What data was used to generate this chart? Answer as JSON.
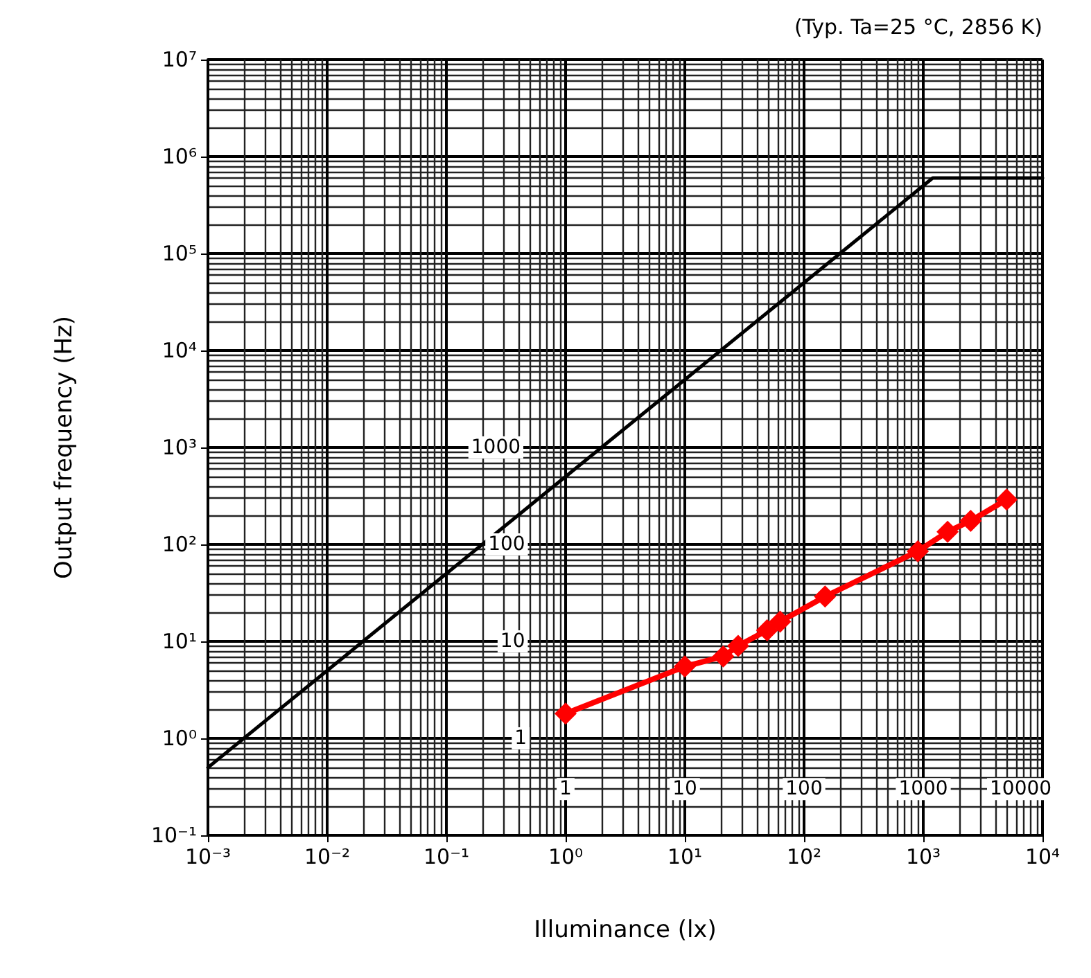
{
  "chart_data": {
    "type": "line",
    "xlabel": "Illuminance (lx)",
    "ylabel": "Output frequency (Hz)",
    "annotations": [
      "(Typ. Ta=25 °C, 2856 K)",
      {
        "text": "1000",
        "x": 0.26,
        "y": 1000
      },
      {
        "text": "100",
        "x": 0.32,
        "y": 100
      },
      {
        "text": "10",
        "x": 0.36,
        "y": 10
      },
      {
        "text": "1",
        "x": 0.42,
        "y": 1
      },
      {
        "text": "1",
        "x": 1,
        "y": 0.3
      },
      {
        "text": "10",
        "x": 10,
        "y": 0.3
      },
      {
        "text": "100",
        "x": 100,
        "y": 0.3
      },
      {
        "text": "1000",
        "x": 1000,
        "y": 0.3
      },
      "10000"
    ],
    "log": "xy",
    "grid": true,
    "xlim": [
      0.001,
      10000
    ],
    "xticks": [
      {
        "value": 0.001,
        "label": "10⁻³"
      },
      {
        "value": 0.01,
        "label": "10⁻²"
      },
      {
        "value": 0.1,
        "label": "10⁻¹"
      },
      {
        "value": 1,
        "label": "10⁰"
      },
      {
        "value": 10,
        "label": "10¹"
      },
      {
        "value": 100,
        "label": "10²"
      },
      {
        "value": 1000,
        "label": "10³"
      },
      {
        "value": 10000,
        "label": "10⁴"
      }
    ],
    "ylim": [
      0.1,
      10000000
    ],
    "yticks": [
      {
        "value": 0.1,
        "label": "10⁻¹"
      },
      {
        "value": 1,
        "label": "10⁰"
      },
      {
        "value": 10,
        "label": "10¹"
      },
      {
        "value": 100,
        "label": "10²"
      },
      {
        "value": 1000,
        "label": "10³"
      },
      {
        "value": 10000,
        "label": "10⁴"
      },
      {
        "value": 100000,
        "label": "10⁵"
      },
      {
        "value": 1000000,
        "label": "10⁶"
      },
      {
        "value": 10000000,
        "label": "10⁷"
      }
    ],
    "series": [
      {
        "color": "#000000",
        "marker": "none",
        "x": [
          0.001,
          1200,
          10000
        ],
        "values": [
          0.5,
          600000,
          600000
        ]
      },
      {
        "color": "#ff0000",
        "marker": "diamond",
        "x": [
          1,
          10,
          21,
          28,
          49,
          63,
          150,
          900,
          1600,
          2500,
          5000
        ],
        "values": [
          1.8,
          5.5,
          7,
          9,
          13,
          16,
          29,
          85,
          135,
          175,
          290
        ]
      }
    ]
  }
}
